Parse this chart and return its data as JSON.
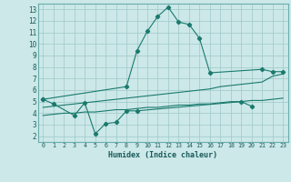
{
  "title": "",
  "xlabel": "Humidex (Indice chaleur)",
  "ylabel": "",
  "bg_color": "#cce8e8",
  "grid_color": "#9fc8c8",
  "line_color": "#1a7a6e",
  "xlim": [
    -0.5,
    23.5
  ],
  "ylim": [
    1.5,
    13.5
  ],
  "xticks": [
    0,
    1,
    2,
    3,
    4,
    5,
    6,
    7,
    8,
    9,
    10,
    11,
    12,
    13,
    14,
    15,
    16,
    17,
    18,
    19,
    20,
    21,
    22,
    23
  ],
  "yticks": [
    2,
    3,
    4,
    5,
    6,
    7,
    8,
    9,
    10,
    11,
    12,
    13
  ],
  "line1_x": [
    0,
    1,
    3,
    4,
    5,
    6,
    7,
    8,
    9,
    19,
    20
  ],
  "line1_y": [
    5.2,
    4.8,
    3.8,
    4.9,
    2.2,
    3.1,
    3.2,
    4.2,
    4.2,
    5.0,
    4.6
  ],
  "line2_x": [
    0,
    8,
    9,
    10,
    11,
    12,
    13,
    14,
    15,
    16,
    21,
    22,
    23
  ],
  "line2_y": [
    5.2,
    6.3,
    9.4,
    11.1,
    12.4,
    13.2,
    11.9,
    11.7,
    10.5,
    7.5,
    7.8,
    7.6,
    7.6
  ],
  "line3_x": [
    0,
    1,
    2,
    3,
    4,
    5,
    6,
    7,
    8,
    9,
    10,
    11,
    12,
    13,
    14,
    15,
    16,
    17,
    18,
    19,
    20,
    21,
    22,
    23
  ],
  "line3_y": [
    3.8,
    3.9,
    4.0,
    4.0,
    4.1,
    4.1,
    4.2,
    4.3,
    4.3,
    4.4,
    4.5,
    4.5,
    4.6,
    4.7,
    4.7,
    4.8,
    4.8,
    4.9,
    5.0,
    5.0,
    5.1,
    5.1,
    5.2,
    5.3
  ],
  "line4_x": [
    0,
    1,
    2,
    3,
    4,
    5,
    6,
    7,
    8,
    9,
    10,
    11,
    12,
    13,
    14,
    15,
    16,
    17,
    18,
    19,
    20,
    21,
    22,
    23
  ],
  "line4_y": [
    4.5,
    4.6,
    4.7,
    4.8,
    4.9,
    5.0,
    5.1,
    5.2,
    5.3,
    5.4,
    5.5,
    5.6,
    5.7,
    5.8,
    5.9,
    6.0,
    6.1,
    6.3,
    6.4,
    6.5,
    6.6,
    6.7,
    7.2,
    7.4
  ]
}
